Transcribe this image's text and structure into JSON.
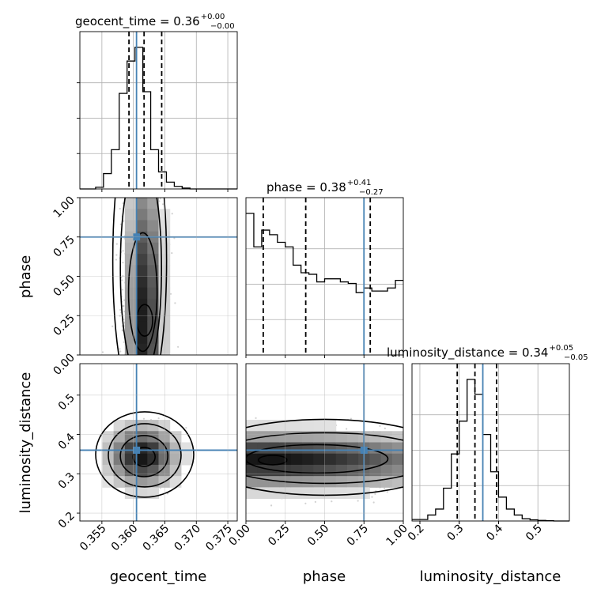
{
  "chart_data": {
    "type": "corner",
    "truth_color": "#4682b4",
    "parameters": [
      {
        "name": "geocent_time",
        "xlabel": "geocent_time",
        "title": "geocent_time = 0.36",
        "title_plus": "+0.00",
        "title_minus": "−0.00",
        "truth": 0.3605,
        "quantiles": [
          0.3593,
          0.3617,
          0.3645
        ],
        "range": [
          0.3515,
          0.3765
        ],
        "ticks": [
          0.355,
          0.36,
          0.365,
          0.37,
          0.375
        ],
        "tick_labels": [
          "0.355",
          "0.360",
          "0.365",
          "0.370",
          "0.375"
        ],
        "hist_edges_start": 0.3515,
        "hist_bin_width": 0.00125,
        "hist": [
          0,
          0,
          0.01,
          0.09,
          0.23,
          0.56,
          0.75,
          0.83,
          0.57,
          0.23,
          0.1,
          0.04,
          0.015,
          0.005,
          0,
          0,
          0,
          0,
          0,
          0
        ]
      },
      {
        "name": "phase",
        "xlabel": "phase",
        "ylabel": "phase",
        "title": "phase = 0.38",
        "title_plus": "+0.41",
        "title_minus": "−0.27",
        "truth": 0.75,
        "quantiles": [
          0.11,
          0.38,
          0.79
        ],
        "range": [
          0,
          1
        ],
        "ticks": [
          0.0,
          0.25,
          0.5,
          0.75,
          1.0
        ],
        "tick_labels": [
          "0.00",
          "0.25",
          "0.50",
          "0.75",
          "1.00"
        ],
        "hist_edges_start": 0,
        "hist_bin_width": 0.05,
        "hist": [
          0.93,
          0.71,
          0.82,
          0.79,
          0.74,
          0.71,
          0.59,
          0.54,
          0.53,
          0.48,
          0.5,
          0.5,
          0.48,
          0.47,
          0.41,
          0.44,
          0.42,
          0.42,
          0.44,
          0.49
        ]
      },
      {
        "name": "luminosity_distance",
        "xlabel": "luminosity_distance",
        "ylabel": "luminosity_distance",
        "title": "luminosity_distance = 0.34",
        "title_plus": "+0.05",
        "title_minus": "−0.05",
        "truth": 0.36,
        "quantiles": [
          0.295,
          0.34,
          0.395
        ],
        "range": [
          0.18,
          0.58
        ],
        "ticks": [
          0.2,
          0.3,
          0.4,
          0.5
        ],
        "tick_labels": [
          "0.2",
          "0.3",
          "0.4",
          "0.5"
        ],
        "yticks": [
          0.2,
          0.3,
          0.4,
          0.5
        ],
        "ytick_labels": [
          "0.2",
          "0.3",
          "0.4",
          "0.5"
        ],
        "hist_edges_start": 0.18,
        "hist_bin_width": 0.02,
        "hist": [
          0.01,
          0.01,
          0.04,
          0.08,
          0.22,
          0.45,
          0.67,
          0.95,
          0.85,
          0.58,
          0.33,
          0.16,
          0.08,
          0.04,
          0.015,
          0.008,
          0.004,
          0.002,
          0,
          0
        ]
      }
    ],
    "pairs": [
      {
        "x": "geocent_time",
        "y": "phase",
        "peak": {
          "x": 0.3618,
          "y": 0.22
        },
        "contours": [
          {
            "cx": 0.3618,
            "cy": 0.22,
            "level": 0.12
          },
          {
            "cx": 0.3615,
            "cy": 0.4,
            "level": 0.39
          },
          {
            "cx": 0.3612,
            "cy": 0.55,
            "level": 0.68
          },
          {
            "cx": 0.361,
            "cy": 0.6,
            "level": 0.86
          }
        ]
      },
      {
        "x": "geocent_time",
        "y": "luminosity_distance",
        "peak": {
          "x": 0.3615,
          "y": 0.345
        },
        "contours": [
          {
            "cx": 0.3617,
            "cy": 0.343,
            "level": 0.12
          },
          {
            "cx": 0.3617,
            "cy": 0.345,
            "level": 0.39
          },
          {
            "cx": 0.3618,
            "cy": 0.347,
            "level": 0.68
          },
          {
            "cx": 0.3618,
            "cy": 0.349,
            "level": 0.86
          }
        ]
      },
      {
        "x": "phase",
        "y": "luminosity_distance",
        "peak": {
          "x": 0.15,
          "y": 0.335
        },
        "contours": [
          {
            "cx": 0.17,
            "cy": 0.335,
            "level": 0.12
          },
          {
            "cx": 0.45,
            "cy": 0.338,
            "level": 0.39
          },
          {
            "cx": 0.5,
            "cy": 0.34,
            "level": 0.68
          },
          {
            "cx": 0.5,
            "cy": 0.342,
            "level": 0.86
          }
        ]
      }
    ],
    "grid": true
  }
}
